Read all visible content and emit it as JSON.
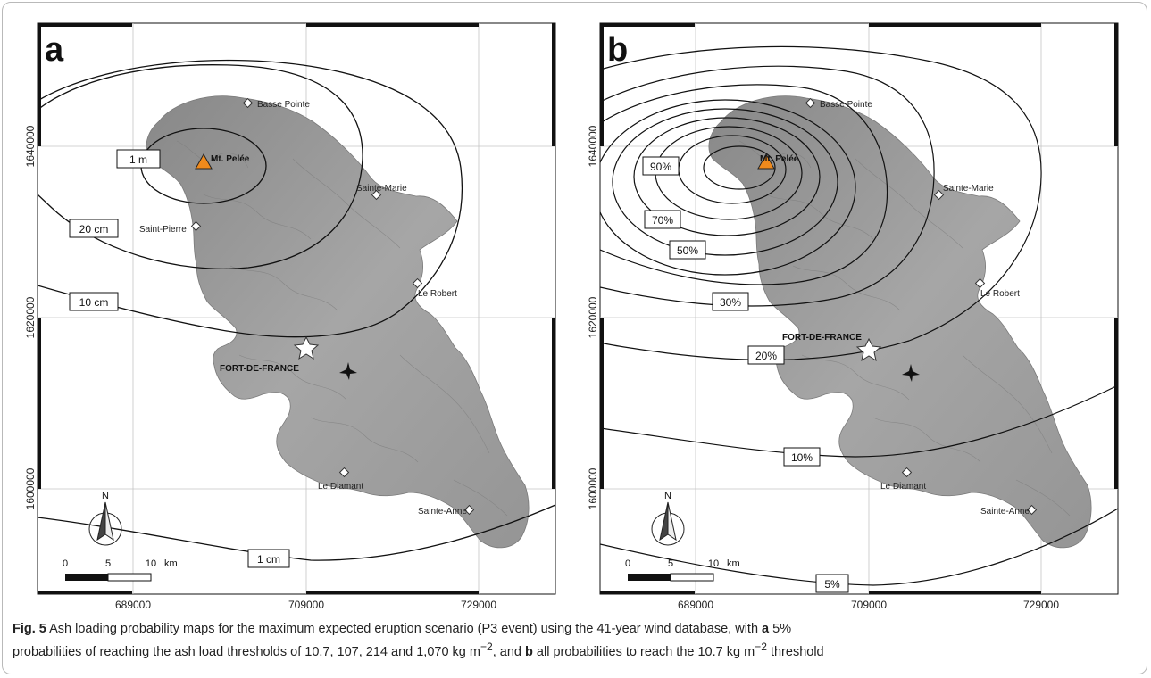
{
  "caption": {
    "label": "Fig. 5",
    "line1_text": "Ash loading probability maps for the maximum expected eruption scenario (P3 event) using the 41-year wind database, with",
    "a_letter": "a",
    "line1_tail": "5%",
    "line2_text": "probabilities of reaching the ash load thresholds of 10.7, 107, 214 and 1,070 kg m",
    "exp": "−2",
    "line2_mid": ", and",
    "b_letter": "b",
    "line2_tail": "all probabilities to reach the 10.7 kg m",
    "line2_end": "threshold"
  },
  "axes": {
    "x_ticks": [
      "689000",
      "709000",
      "729000"
    ],
    "y_ticks": [
      "1640000",
      "1620000",
      "1600000"
    ]
  },
  "places": {
    "basse_pointe": "Basse Pointe",
    "mt_pelee": "Mt. Pelée",
    "sainte_marie": "Sainte-Marie",
    "saint_pierre": "Saint-Pierre",
    "le_robert": "Le Robert",
    "fort_de_france": "FORT-DE-FRANCE",
    "le_diamant": "Le Diamant",
    "sainte_anne": "Sainte-Anne"
  },
  "scale_bar": {
    "t0": "0",
    "t1": "5",
    "t2": "10",
    "unit": "km"
  },
  "north": "N",
  "panel_a": {
    "letter": "a",
    "contours": {
      "c1m": "1 m",
      "c20cm": "20 cm",
      "c10cm": "10 cm",
      "c1cm": "1 cm"
    }
  },
  "panel_b": {
    "letter": "b",
    "contours": {
      "p90": "90%",
      "p70": "70%",
      "p50": "50%",
      "p30": "30%",
      "p20": "20%",
      "p10": "10%",
      "p5": "5%"
    }
  },
  "colors": {
    "island": "#9c9c9c",
    "volcano": "#f08a1c",
    "contour": "#111111"
  }
}
